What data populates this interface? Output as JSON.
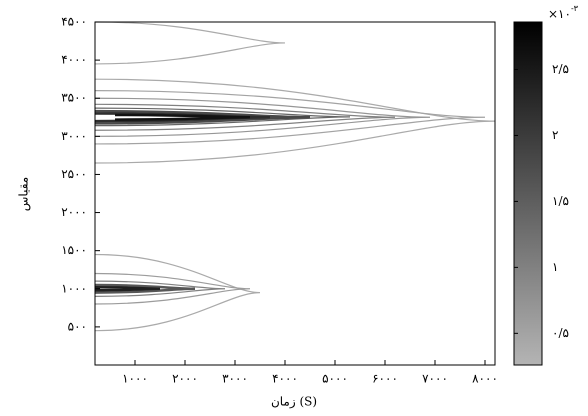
{
  "chart_data": {
    "type": "contour",
    "x_label": "زمان (S)",
    "y_label": "مقیاس",
    "xlim": [
      200,
      8200
    ],
    "ylim": [
      0,
      4500
    ],
    "xticks": [
      {
        "value": 1000,
        "label": "۱۰۰۰"
      },
      {
        "value": 2000,
        "label": "۲۰۰۰"
      },
      {
        "value": 3000,
        "label": "۳۰۰۰"
      },
      {
        "value": 4000,
        "label": "۴۰۰۰"
      },
      {
        "value": 5000,
        "label": "۵۰۰۰"
      },
      {
        "value": 6000,
        "label": "۶۰۰۰"
      },
      {
        "value": 7000,
        "label": "۷۰۰۰"
      },
      {
        "value": 8000,
        "label": "۸۰۰۰"
      }
    ],
    "yticks": [
      {
        "value": 500,
        "label": "۵۰۰"
      },
      {
        "value": 1000,
        "label": "۱۰۰۰"
      },
      {
        "value": 1500,
        "label": "۱۵۰۰"
      },
      {
        "value": 2000,
        "label": "۲۰۰۰"
      },
      {
        "value": 2500,
        "label": "۲۵۰۰"
      },
      {
        "value": 3000,
        "label": "۳۰۰۰"
      },
      {
        "value": 3500,
        "label": "۳۵۰۰"
      },
      {
        "value": 4000,
        "label": "۴۰۰۰"
      },
      {
        "value": 4500,
        "label": "۴۵۰۰"
      }
    ],
    "colorbar": {
      "clim": [
        0.26,
        2.86
      ],
      "ticks": [
        {
          "value": 0.5,
          "label": "۰/۵"
        },
        {
          "value": 1,
          "label": "۱"
        },
        {
          "value": 1.5,
          "label": "۱/۵"
        },
        {
          "value": 2,
          "label": "۲"
        },
        {
          "value": 2.5,
          "label": "۲/۵"
        }
      ],
      "multiplier": "×۱۰",
      "exponent": "-۳",
      "colors": [
        "#b4b4b4",
        "#000000"
      ]
    },
    "contours": [
      {
        "level": 0.4,
        "x0": 200,
        "x1": 8200,
        "y0": 2650,
        "y1": 3750
      },
      {
        "level": 0.5,
        "x0": 200,
        "x1": 8000,
        "y0": 2900,
        "y1": 3600
      },
      {
        "level": 0.7,
        "x0": 200,
        "x1": 6900,
        "y0": 3000,
        "y1": 3500
      },
      {
        "level": 1.0,
        "x0": 200,
        "x1": 6200,
        "y0": 3080,
        "y1": 3420
      },
      {
        "level": 1.4,
        "x0": 200,
        "x1": 5300,
        "y0": 3140,
        "y1": 3370
      },
      {
        "level": 1.8,
        "x0": 200,
        "x1": 4500,
        "y0": 3170,
        "y1": 3330
      },
      {
        "level": 2.2,
        "x0": 200,
        "x1": 3700,
        "y0": 3200,
        "y1": 3300
      },
      {
        "level": 2.6,
        "x0": 600,
        "x1": 3300,
        "y0": 3220,
        "y1": 3280
      },
      {
        "level": 0.4,
        "x0": 200,
        "x1": 4000,
        "y0": 3950,
        "y1": 4500
      },
      {
        "level": 0.4,
        "x0": 200,
        "x1": 3500,
        "y0": 450,
        "y1": 1450
      },
      {
        "level": 0.6,
        "x0": 200,
        "x1": 3300,
        "y0": 800,
        "y1": 1200
      },
      {
        "level": 1.0,
        "x0": 200,
        "x1": 2800,
        "y0": 900,
        "y1": 1100
      },
      {
        "level": 1.6,
        "x0": 200,
        "x1": 2200,
        "y0": 950,
        "y1": 1050
      },
      {
        "level": 2.4,
        "x0": 200,
        "x1": 1500,
        "y0": 980,
        "y1": 1020
      }
    ]
  }
}
